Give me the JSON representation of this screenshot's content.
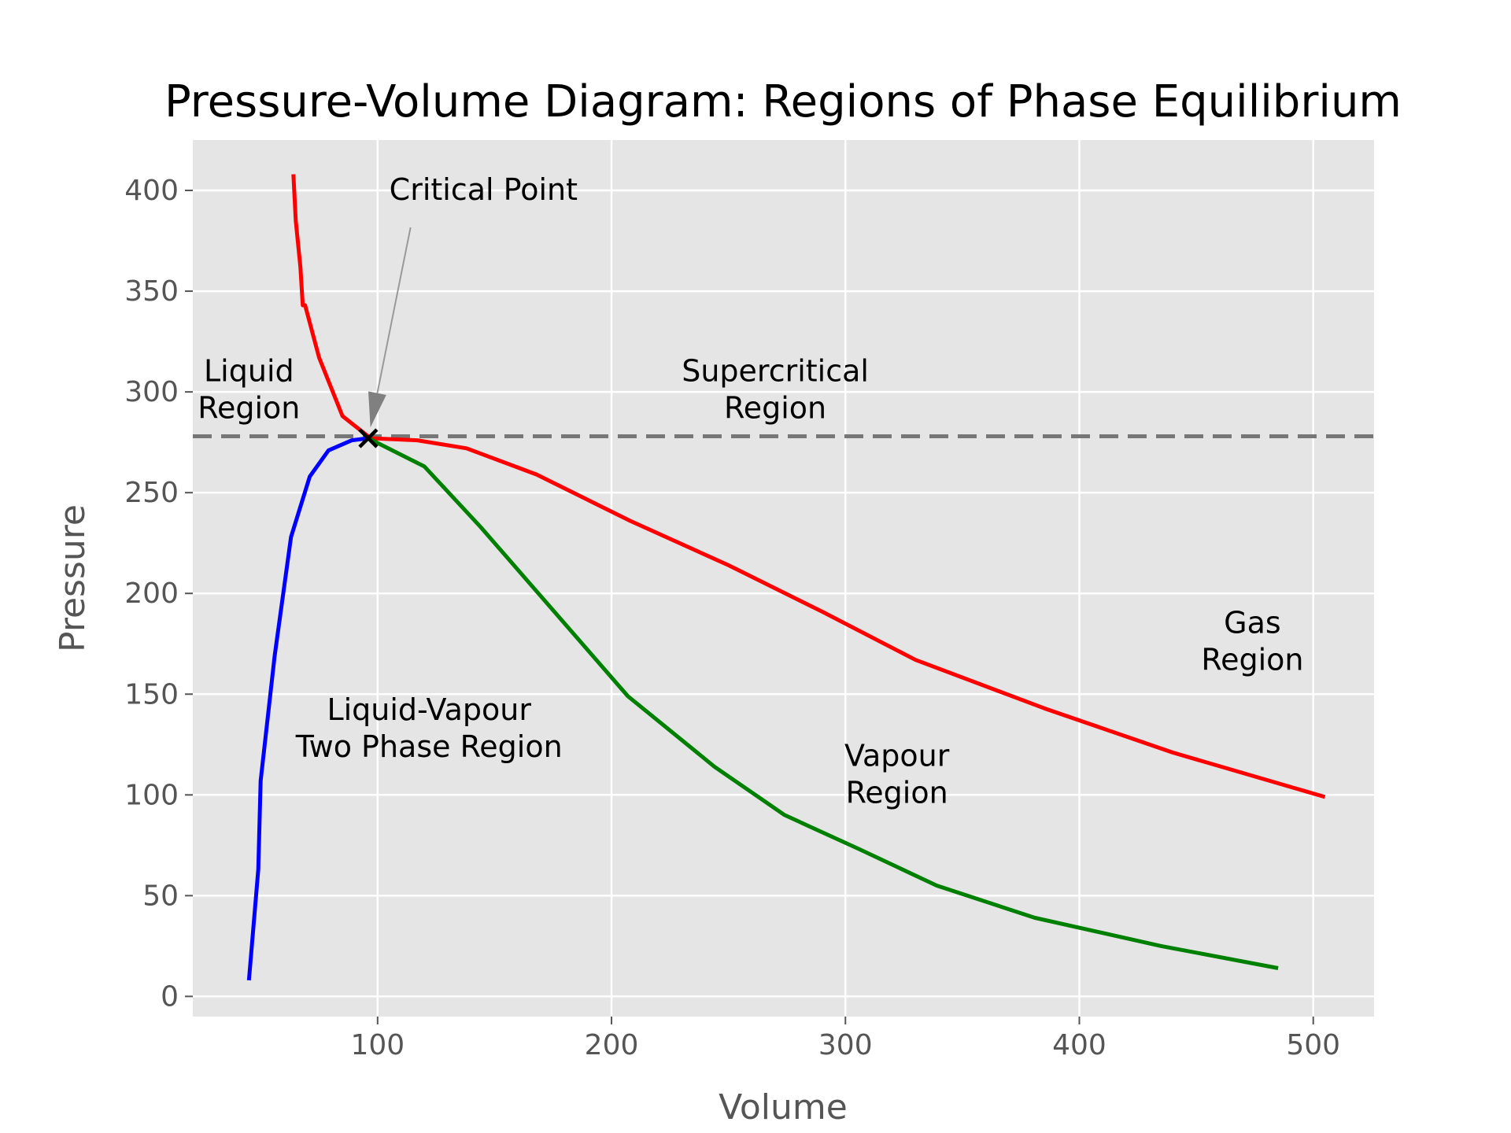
{
  "chart_data": {
    "type": "line",
    "title": "Pressure-Volume Diagram: Regions of Phase Equilibrium",
    "xlabel": "Volume",
    "ylabel": "Pressure",
    "xlim": [
      21,
      526
    ],
    "ylim": [
      -10,
      425
    ],
    "xticks": [
      100,
      200,
      300,
      400,
      500
    ],
    "yticks": [
      0,
      50,
      100,
      150,
      200,
      250,
      300,
      350,
      400
    ],
    "grid": true,
    "background": "#e5e5e5",
    "series": [
      {
        "color": "#ff0000",
        "x": [
          64,
          65,
          67,
          68,
          69,
          75,
          85,
          97,
          117,
          138,
          168,
          208,
          250,
          290,
          330,
          385,
          440,
          505
        ],
        "y": [
          408,
          385,
          362,
          343,
          343,
          317,
          288,
          277,
          276,
          272,
          259,
          236,
          214,
          191,
          167,
          143,
          121,
          99
        ]
      },
      {
        "color": "#0000ff",
        "x": [
          45,
          49,
          50,
          56,
          63,
          71,
          79,
          89,
          96
        ],
        "y": [
          8,
          63,
          107,
          169,
          228,
          258,
          271,
          276,
          277
        ]
      },
      {
        "color": "#008000",
        "x": [
          96,
          120,
          144,
          168,
          207,
          244,
          274,
          306,
          339,
          381,
          435,
          485
        ],
        "y": [
          277,
          263,
          233,
          201,
          149,
          114,
          90,
          73,
          55,
          39,
          25,
          14
        ]
      }
    ],
    "critical_point": {
      "x": 96,
      "y": 277,
      "label": "Critical Point",
      "label_x": 105,
      "label_y": 400
    },
    "reference_line": {
      "y": 278,
      "style": "dashed",
      "color": "#777777"
    },
    "annotations": [
      {
        "lines": [
          "Liquid",
          "Region"
        ],
        "x": 45,
        "y": 292
      },
      {
        "lines": [
          "Supercritical",
          "Region"
        ],
        "x": 270,
        "y": 292
      },
      {
        "lines": [
          "Liquid-Vapour",
          "Two Phase Region"
        ],
        "x": 122,
        "y": 124
      },
      {
        "lines": [
          "Vapour",
          "Region"
        ],
        "x": 322,
        "y": 101
      },
      {
        "lines": [
          "Gas",
          "Region"
        ],
        "x": 474,
        "y": 167
      }
    ]
  }
}
